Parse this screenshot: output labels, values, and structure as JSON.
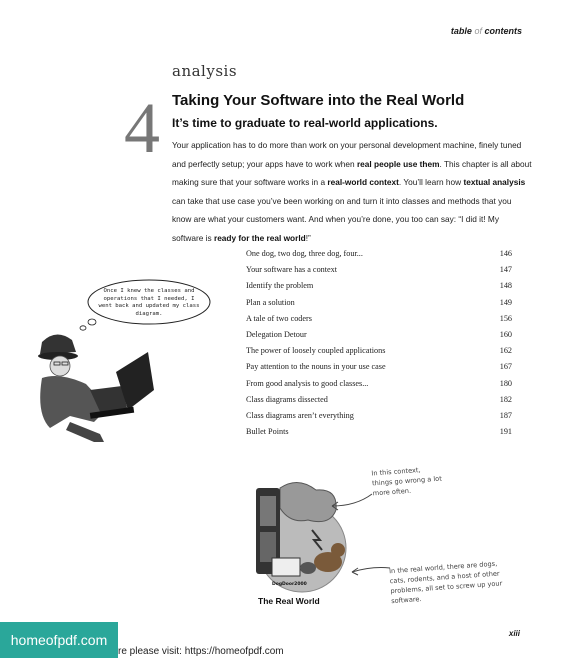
{
  "header": {
    "title_before": "table",
    "title_of": "of",
    "title_after": "contents"
  },
  "chapter": {
    "label": "analysis",
    "number": "4",
    "title": "Taking Your Software into the Real World",
    "subtitle": "It’s time to graduate to real-world applications."
  },
  "intro": {
    "p1": "Your application has to do more than work on your personal development machine, finely tuned and perfectly setup; your apps have to work when ",
    "b1": "real people use them",
    "p2": ". This chapter is all about making sure that your software works in a ",
    "b2": "real-world context",
    "p3": ". You’ll learn how ",
    "b3": "textual analysis",
    "p4": " can take that use case you’ve been working on and turn it into classes and methods that you know are what your customers want. And when you’re done, you too can say: “I did it! My software is ",
    "b4": "ready for the real world",
    "p5": "!”"
  },
  "toc": [
    {
      "title": "One dog, two dog, three dog, four...",
      "page": "146"
    },
    {
      "title": "Your software has a context",
      "page": "147"
    },
    {
      "title": "Identify the problem",
      "page": "148"
    },
    {
      "title": "Plan a solution",
      "page": "149"
    },
    {
      "title": "A tale of two coders",
      "page": "156"
    },
    {
      "title": "Delegation Detour",
      "page": "160"
    },
    {
      "title": "The power of loosely coupled applications",
      "page": "162"
    },
    {
      "title": "Pay attention to the nouns in your use case",
      "page": "167"
    },
    {
      "title": "From good analysis to good classes...",
      "page": "180"
    },
    {
      "title": "Class diagrams dissected",
      "page": "182"
    },
    {
      "title": "Class diagrams aren’t everything",
      "page": "187"
    },
    {
      "title": "Bullet Points",
      "page": "191"
    }
  ],
  "thought_bubble": "Once I knew the classes and operations that I needed, I went back and updated my class diagram.",
  "annotations": {
    "context": "In this context, things go wrong a lot more often.",
    "real_world": "In the real world, there are dogs, cats, rodents, and a host of other problems, all set to screw up your software."
  },
  "illustration": {
    "sign": "DogDoor2000",
    "caption": "The Real World"
  },
  "page_number": "xiii",
  "footer": {
    "banner": "homeofpdf.com",
    "text": "re please visit: https://homeofpdf.com"
  },
  "colors": {
    "banner": "#2aa79a",
    "chapter_number": "#777777"
  }
}
